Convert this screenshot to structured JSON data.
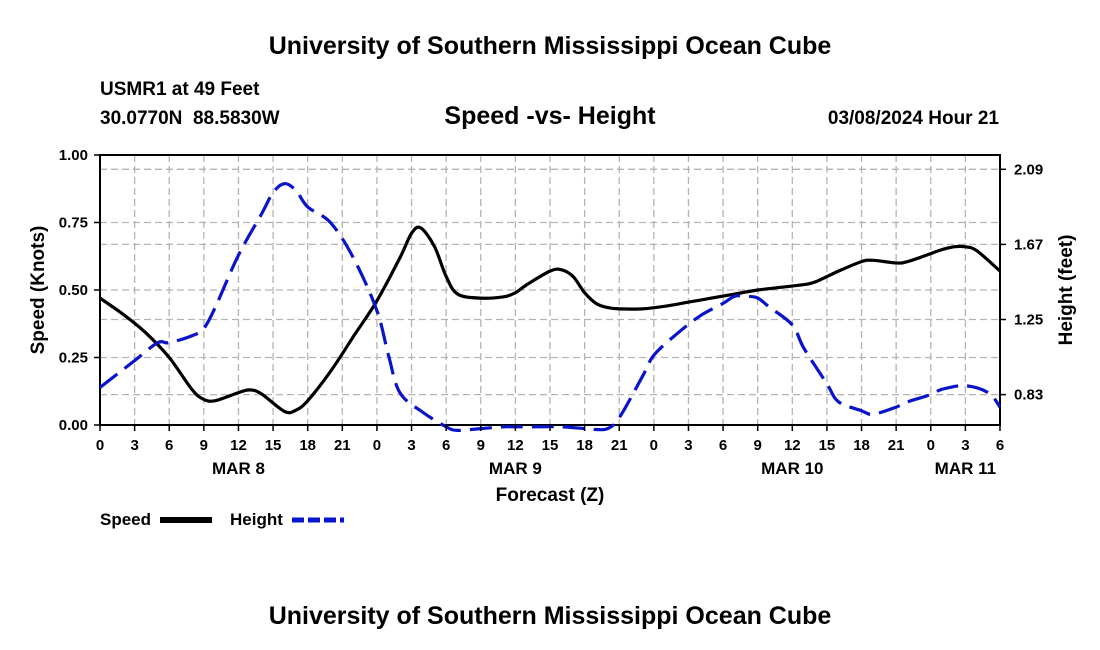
{
  "chart_data": {
    "type": "line",
    "title": "University of Southern Mississippi Ocean Cube",
    "footer_title": "University of Southern Mississippi Ocean Cube",
    "subtitle": "Speed -vs- Height",
    "station": "USMR1 at 49 Feet",
    "coordinates": "30.0770N  88.5830W",
    "timestamp": "03/08/2024 Hour 21",
    "xlabel": "Forecast (Z)",
    "ylabel_left": "Speed (Knots)",
    "ylabel_right": "Height (feet)",
    "x_range_hours": [
      0,
      78
    ],
    "ylim_left": [
      0,
      1
    ],
    "ylim_right": [
      0.66,
      2.17
    ],
    "grid": true,
    "left_ticks": [
      {
        "value": 0.0,
        "label": "0.00"
      },
      {
        "value": 0.25,
        "label": "0.25"
      },
      {
        "value": 0.5,
        "label": "0.50"
      },
      {
        "value": 0.75,
        "label": "0.75"
      },
      {
        "value": 1.0,
        "label": "1.00"
      }
    ],
    "right_ticks": [
      {
        "value": 0.83,
        "label": "0.83"
      },
      {
        "value": 1.25,
        "label": "1.25"
      },
      {
        "value": 1.67,
        "label": "1.67"
      },
      {
        "value": 2.09,
        "label": "2.09"
      }
    ],
    "x_ticks": [
      {
        "hour": 0,
        "label": "0"
      },
      {
        "hour": 3,
        "label": "3"
      },
      {
        "hour": 6,
        "label": "6"
      },
      {
        "hour": 9,
        "label": "9"
      },
      {
        "hour": 12,
        "label": "12"
      },
      {
        "hour": 15,
        "label": "15"
      },
      {
        "hour": 18,
        "label": "18"
      },
      {
        "hour": 21,
        "label": "21"
      },
      {
        "hour": 24,
        "label": "0"
      },
      {
        "hour": 27,
        "label": "3"
      },
      {
        "hour": 30,
        "label": "6"
      },
      {
        "hour": 33,
        "label": "9"
      },
      {
        "hour": 36,
        "label": "12"
      },
      {
        "hour": 39,
        "label": "15"
      },
      {
        "hour": 42,
        "label": "18"
      },
      {
        "hour": 45,
        "label": "21"
      },
      {
        "hour": 48,
        "label": "0"
      },
      {
        "hour": 51,
        "label": "3"
      },
      {
        "hour": 54,
        "label": "6"
      },
      {
        "hour": 57,
        "label": "9"
      },
      {
        "hour": 60,
        "label": "12"
      },
      {
        "hour": 63,
        "label": "15"
      },
      {
        "hour": 66,
        "label": "18"
      },
      {
        "hour": 69,
        "label": "21"
      },
      {
        "hour": 72,
        "label": "0"
      },
      {
        "hour": 75,
        "label": "3"
      },
      {
        "hour": 78,
        "label": "6"
      }
    ],
    "date_labels": [
      {
        "hour": 12,
        "label": "MAR 8"
      },
      {
        "hour": 36,
        "label": "MAR 9"
      },
      {
        "hour": 60,
        "label": "MAR 10"
      },
      {
        "hour": 75,
        "label": "MAR 11"
      }
    ],
    "legend": [
      {
        "name": "Speed",
        "color": "#000000",
        "style": "solid"
      },
      {
        "name": "Height",
        "color": "#0a14c8",
        "style": "dashed"
      }
    ],
    "series": [
      {
        "name": "Speed",
        "axis": "left",
        "color": "#000000",
        "dashed": false,
        "points": [
          [
            0,
            0.47
          ],
          [
            2,
            0.41
          ],
          [
            4,
            0.34
          ],
          [
            6,
            0.25
          ],
          [
            8,
            0.13
          ],
          [
            9,
            0.095
          ],
          [
            10,
            0.09
          ],
          [
            12,
            0.12
          ],
          [
            13,
            0.13
          ],
          [
            14,
            0.115
          ],
          [
            16,
            0.05
          ],
          [
            17,
            0.055
          ],
          [
            18,
            0.09
          ],
          [
            20,
            0.2
          ],
          [
            22,
            0.33
          ],
          [
            24,
            0.46
          ],
          [
            26,
            0.62
          ],
          [
            27,
            0.71
          ],
          [
            27.8,
            0.73
          ],
          [
            29,
            0.66
          ],
          [
            30,
            0.55
          ],
          [
            31,
            0.485
          ],
          [
            33,
            0.47
          ],
          [
            35,
            0.475
          ],
          [
            36,
            0.49
          ],
          [
            37,
            0.52
          ],
          [
            39,
            0.57
          ],
          [
            40,
            0.575
          ],
          [
            41,
            0.55
          ],
          [
            42,
            0.49
          ],
          [
            43,
            0.45
          ],
          [
            44,
            0.435
          ],
          [
            45,
            0.43
          ],
          [
            47,
            0.43
          ],
          [
            49,
            0.44
          ],
          [
            51,
            0.455
          ],
          [
            53,
            0.47
          ],
          [
            55,
            0.485
          ],
          [
            57,
            0.5
          ],
          [
            59,
            0.51
          ],
          [
            61,
            0.52
          ],
          [
            62,
            0.53
          ],
          [
            64,
            0.57
          ],
          [
            66,
            0.605
          ],
          [
            67,
            0.61
          ],
          [
            69,
            0.6
          ],
          [
            70,
            0.605
          ],
          [
            72,
            0.635
          ],
          [
            73,
            0.65
          ],
          [
            74,
            0.66
          ],
          [
            75,
            0.66
          ],
          [
            76,
            0.645
          ],
          [
            78,
            0.57
          ]
        ]
      },
      {
        "name": "Height",
        "axis": "right",
        "color": "#0a14c8",
        "dashed": true,
        "points": [
          [
            0,
            0.87
          ],
          [
            2,
            0.97
          ],
          [
            3,
            1.02
          ],
          [
            5,
            1.12
          ],
          [
            6,
            1.12
          ],
          [
            8,
            1.16
          ],
          [
            9,
            1.2
          ],
          [
            10,
            1.32
          ],
          [
            12,
            1.61
          ],
          [
            14,
            1.84
          ],
          [
            15,
            1.96
          ],
          [
            16,
            2.01
          ],
          [
            17,
            1.97
          ],
          [
            18,
            1.88
          ],
          [
            20,
            1.79
          ],
          [
            22,
            1.59
          ],
          [
            24,
            1.3
          ],
          [
            25,
            1.05
          ],
          [
            26,
            0.84
          ],
          [
            28,
            0.73
          ],
          [
            30,
            0.65
          ],
          [
            31,
            0.63
          ],
          [
            33,
            0.64
          ],
          [
            35,
            0.65
          ],
          [
            36,
            0.65
          ],
          [
            38,
            0.65
          ],
          [
            40,
            0.65
          ],
          [
            42,
            0.64
          ],
          [
            43,
            0.635
          ],
          [
            44,
            0.64
          ],
          [
            45,
            0.7
          ],
          [
            47,
            0.93
          ],
          [
            48,
            1.05
          ],
          [
            50,
            1.17
          ],
          [
            52,
            1.27
          ],
          [
            54,
            1.34
          ],
          [
            55,
            1.38
          ],
          [
            56,
            1.38
          ],
          [
            57,
            1.37
          ],
          [
            58,
            1.32
          ],
          [
            60,
            1.22
          ],
          [
            61,
            1.09
          ],
          [
            63,
            0.89
          ],
          [
            64,
            0.79
          ],
          [
            66,
            0.74
          ],
          [
            67,
            0.72
          ],
          [
            69,
            0.76
          ],
          [
            70,
            0.79
          ],
          [
            72,
            0.83
          ],
          [
            73,
            0.86
          ],
          [
            75,
            0.88
          ],
          [
            77,
            0.84
          ],
          [
            78,
            0.76
          ]
        ]
      }
    ]
  }
}
